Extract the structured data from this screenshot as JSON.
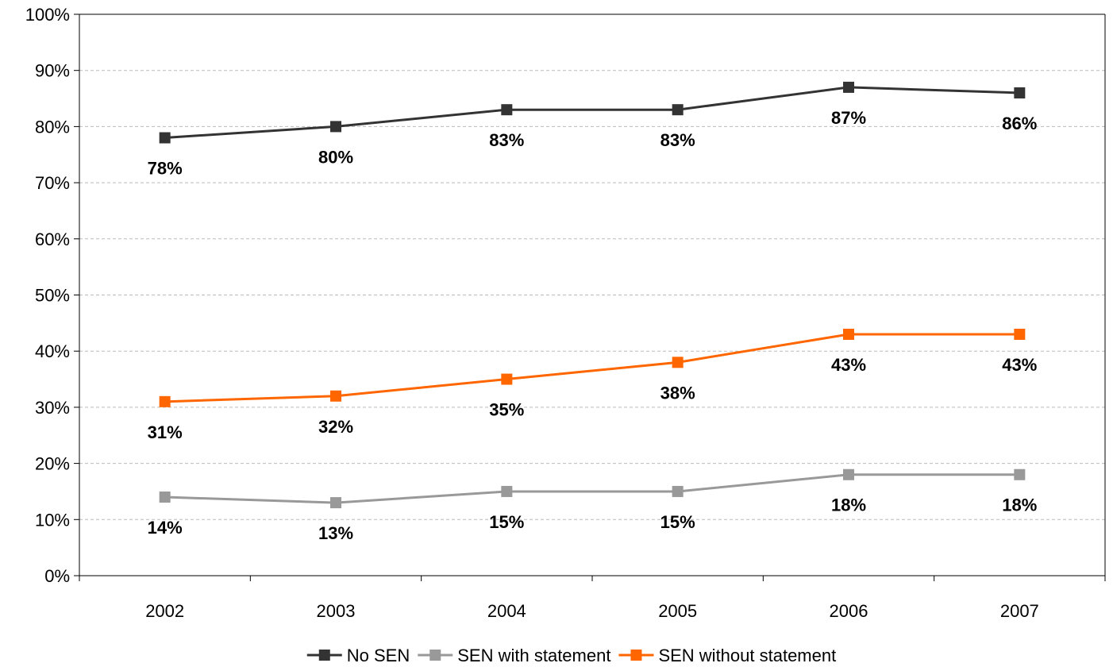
{
  "chart_data": {
    "type": "line",
    "categories": [
      "2002",
      "2003",
      "2004",
      "2005",
      "2006",
      "2007"
    ],
    "series": [
      {
        "name": "No SEN",
        "values": [
          78,
          80,
          83,
          83,
          87,
          86
        ],
        "color": "#333333",
        "labels": [
          "78%",
          "80%",
          "83%",
          "83%",
          "87%",
          "86%"
        ]
      },
      {
        "name": "SEN with statement",
        "values": [
          14,
          13,
          15,
          15,
          18,
          18
        ],
        "color": "#999999",
        "labels": [
          "14%",
          "13%",
          "15%",
          "15%",
          "18%",
          "18%"
        ]
      },
      {
        "name": "SEN without statement",
        "values": [
          31,
          32,
          35,
          38,
          43,
          43
        ],
        "color": "#ff6600",
        "labels": [
          "31%",
          "32%",
          "35%",
          "38%",
          "43%",
          "43%"
        ]
      }
    ],
    "y_ticks": [
      "0%",
      "10%",
      "20%",
      "30%",
      "40%",
      "50%",
      "60%",
      "70%",
      "80%",
      "90%",
      "100%"
    ],
    "ylim": [
      0,
      100
    ],
    "grid": true,
    "legend_position": "bottom",
    "title": "",
    "xlabel": "",
    "ylabel": ""
  }
}
